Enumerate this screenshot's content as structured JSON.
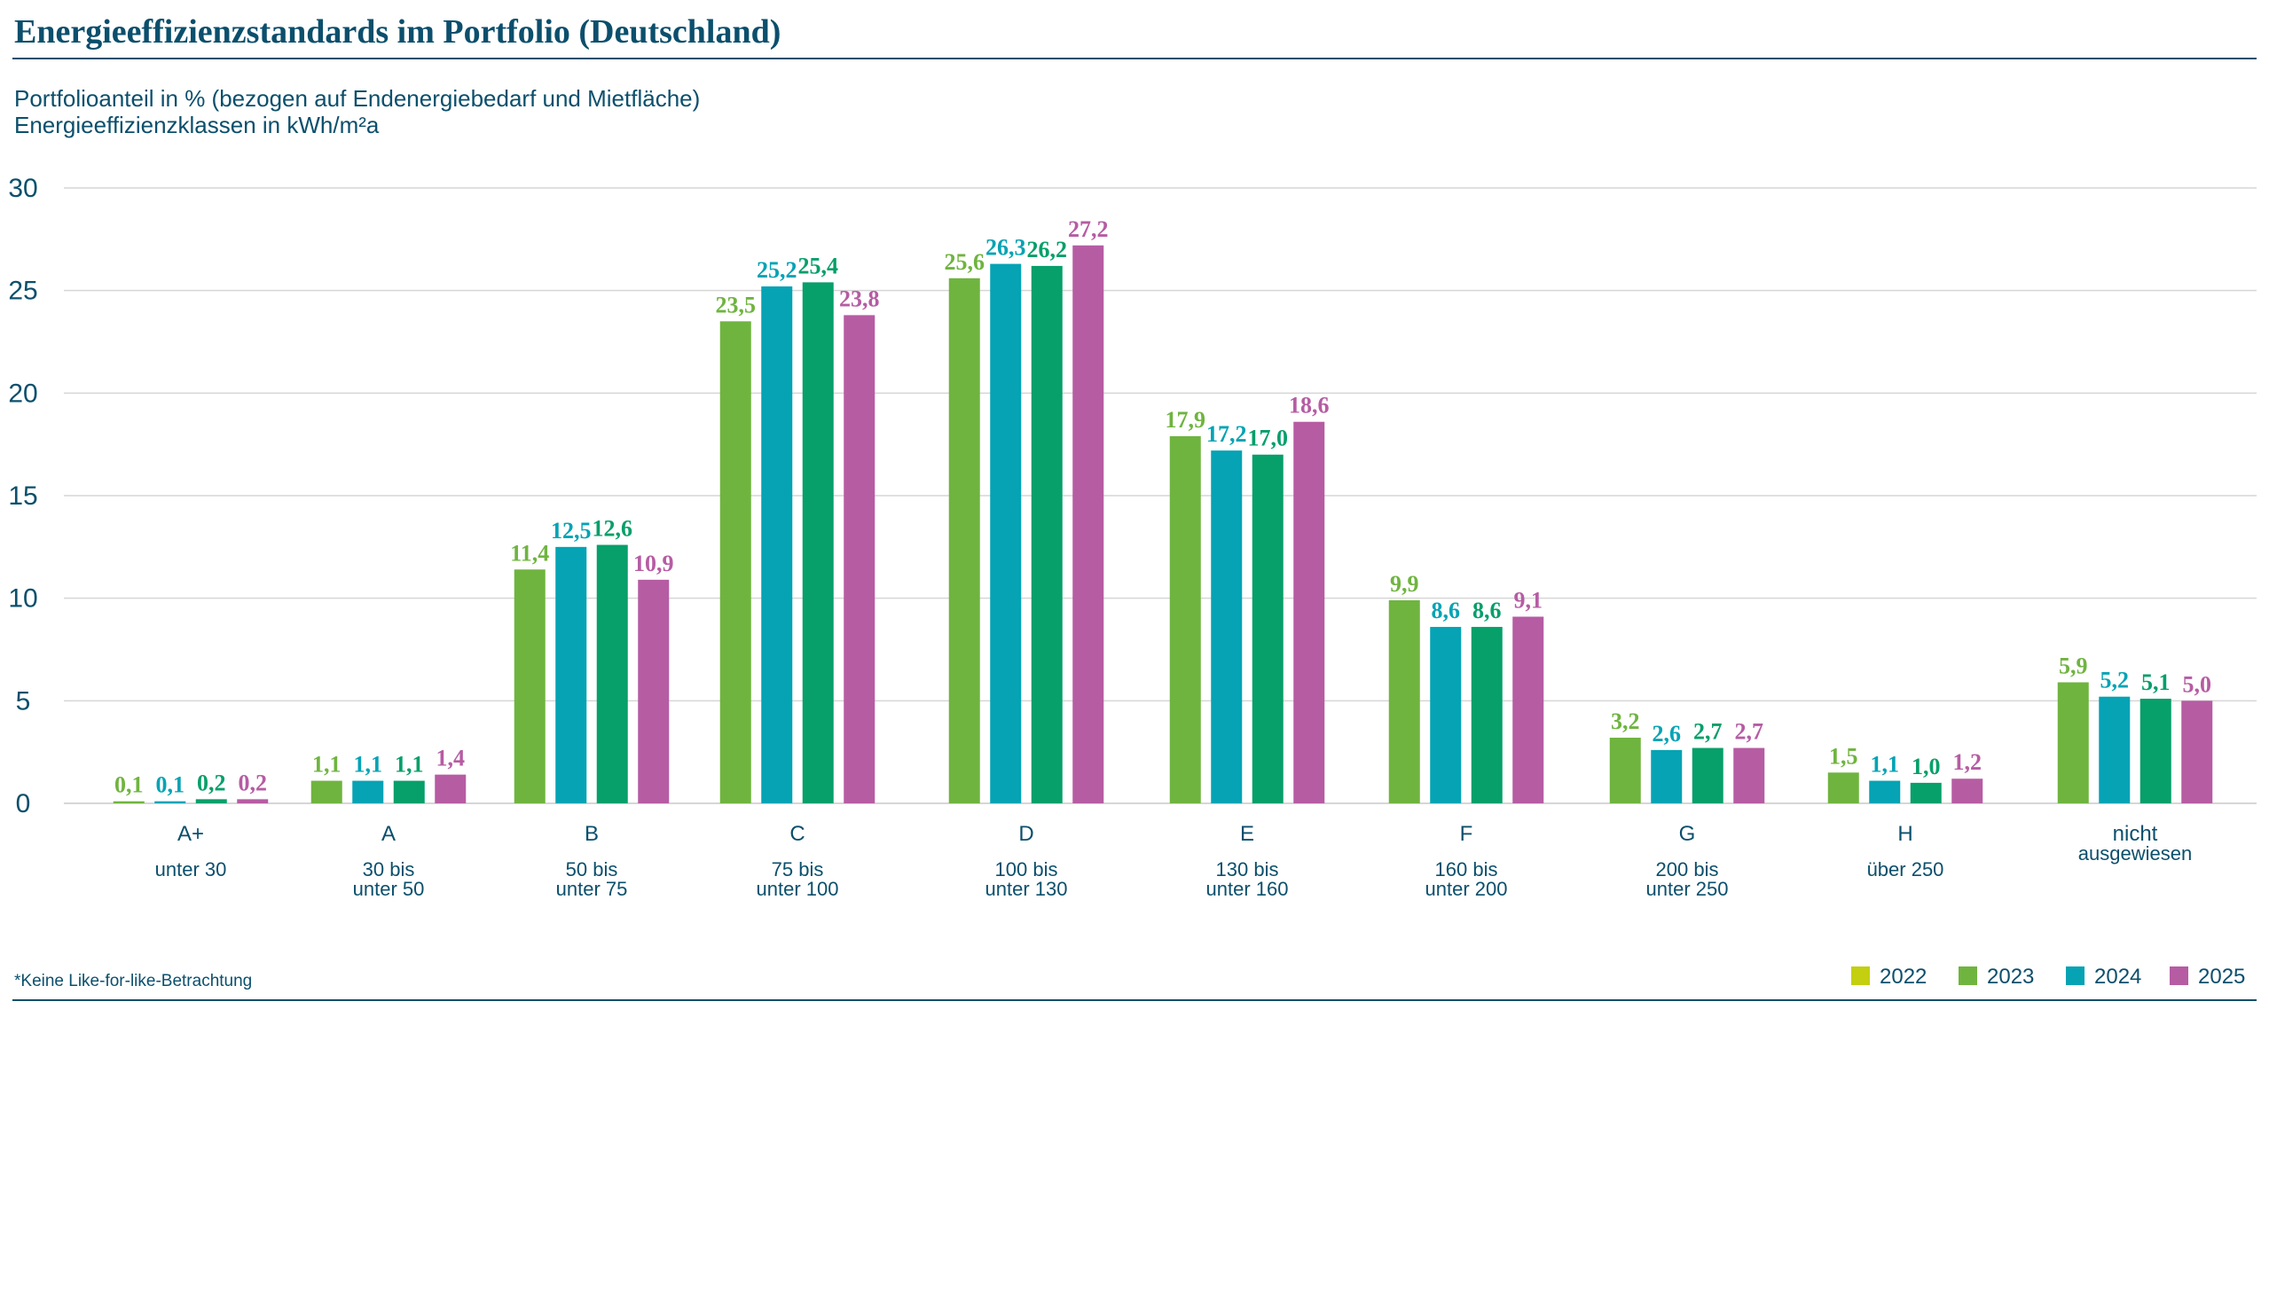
{
  "chart_data": {
    "type": "bar",
    "title": "Energieeffizienzstandards im Portfolio (Deutschland)",
    "subtitle_lines": [
      "Portfolioanteil in % (bezogen auf Endenergiebedarf und Mietfläche)",
      "Energieeffizienzklassen in kWh/m²a"
    ],
    "footnote": "*Keine Like-for-like-Betrachtung",
    "ylim": [
      0,
      30
    ],
    "yticks": [
      "0",
      "5",
      "10",
      "15",
      "20",
      "25",
      "30"
    ],
    "grid": true,
    "legend_position": "bottom-right",
    "categories": [
      {
        "label": "A+",
        "sub": [
          "unter 30"
        ]
      },
      {
        "label": "A",
        "sub": [
          "30 bis",
          "unter 50"
        ]
      },
      {
        "label": "B",
        "sub": [
          "50 bis",
          "unter 75"
        ]
      },
      {
        "label": "C",
        "sub": [
          "75 bis",
          "unter 100"
        ]
      },
      {
        "label": "D",
        "sub": [
          "100 bis",
          "unter 130"
        ]
      },
      {
        "label": "E",
        "sub": [
          "130 bis",
          "unter 160"
        ]
      },
      {
        "label": "F",
        "sub": [
          "160 bis",
          "unter 200"
        ]
      },
      {
        "label": "G",
        "sub": [
          "200 bis",
          "unter 250"
        ]
      },
      {
        "label": "H",
        "sub": [
          "über 250"
        ]
      },
      {
        "label": "nicht",
        "sub": [
          "ausgewiesen"
        ]
      }
    ],
    "legend": [
      {
        "name": "2022",
        "color": "#c3cf0f"
      },
      {
        "name": "2023",
        "color": "#6fb43f"
      },
      {
        "name": "2024",
        "color": "#05a3b4"
      },
      {
        "name": "2025",
        "color": "#b65ca3"
      }
    ],
    "series": [
      {
        "name": "2023",
        "color": "#6fb43f",
        "values": [
          0.1,
          1.1,
          11.4,
          23.5,
          25.6,
          17.9,
          9.9,
          3.2,
          1.5,
          5.9
        ],
        "labels": [
          "0,1",
          "1,1",
          "11,4",
          "23,5",
          "25,6",
          "17,9",
          "9,9",
          "3,2",
          "1,5",
          "5,9"
        ]
      },
      {
        "name": "2024",
        "color": "#05a3b4",
        "values": [
          0.1,
          1.1,
          12.5,
          25.2,
          26.3,
          17.2,
          8.6,
          2.6,
          1.1,
          5.2
        ],
        "labels": [
          "0,1",
          "1,1",
          "12,5",
          "25,2",
          "26,3",
          "17,2",
          "8,6",
          "2,6",
          "1,1",
          "5,2"
        ]
      },
      {
        "name": "",
        "color": "#079f6a",
        "values": [
          0.2,
          1.1,
          12.6,
          25.4,
          26.2,
          17.0,
          8.6,
          2.7,
          1.0,
          5.1
        ],
        "labels": [
          "0,2",
          "1,1",
          "12,6",
          "25,4",
          "26,2",
          "17,0",
          "8,6",
          "2,7",
          "1,0",
          "5,1"
        ]
      },
      {
        "name": "2025",
        "color": "#b65ca3",
        "values": [
          0.2,
          1.4,
          10.9,
          23.8,
          27.2,
          18.6,
          9.1,
          2.7,
          1.2,
          5.0
        ],
        "labels": [
          "0,2",
          "1,4",
          "10,9",
          "23,8",
          "27,2",
          "18,6",
          "9,1",
          "2,7",
          "1,2",
          "5,0"
        ]
      }
    ]
  }
}
